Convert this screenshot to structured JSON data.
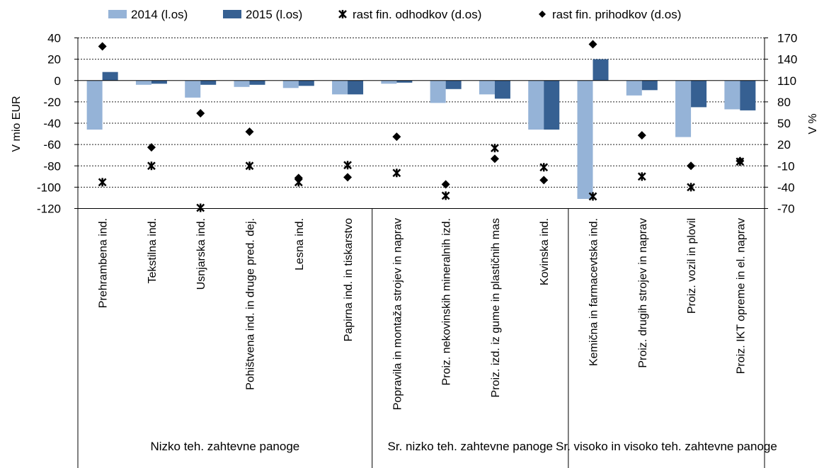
{
  "chart_data": {
    "type": "bar",
    "ylabel": "V mio EUR",
    "y2label": "V %",
    "ylim": [
      -120,
      40
    ],
    "y_ticks": [
      40,
      20,
      0,
      -20,
      -40,
      -60,
      -80,
      -100,
      -120
    ],
    "y2lim": [
      -70,
      170
    ],
    "y2_ticks": [
      170,
      140,
      110,
      80,
      50,
      20,
      -10,
      -40,
      -70
    ],
    "grid": "horizontal dashed",
    "legend_position": "top",
    "categories": [
      "Prehrambena ind.",
      "Tekstilna ind.",
      "Usnjarska ind.",
      "Pohištvena ind. in druge pred. dej.",
      "Lesna ind.",
      "Papirna ind. in tiskarstvo",
      "Popravila in montaža strojev in naprav",
      "Proiz. nekovinskih mineralnih izd.",
      "Proiz. izd. iz gume in plastičnih mas",
      "Kovinska ind.",
      "Kemična in farmacevtska ind.",
      "Proiz. drugih strojev in naprav",
      "Proiz. vozil in plovil",
      "Proiz. IKT opreme in el. naprav"
    ],
    "groups": [
      {
        "label": "Nizko teh. zahtevne panoge",
        "span": [
          0,
          5
        ]
      },
      {
        "label": "Sr. nizko teh. zahtevne panoge",
        "span": [
          6,
          9
        ]
      },
      {
        "label": "Sr. visoko in visoko teh. zahtevne panoge",
        "span": [
          10,
          13
        ]
      }
    ],
    "series": [
      {
        "name": "2014 (l.os)",
        "type": "bar",
        "axis": "left",
        "color": "#95b3d7",
        "values": [
          -46,
          -4,
          -16,
          -6,
          -7,
          -13,
          -3,
          -21,
          -13,
          -46,
          -111,
          -14,
          -53,
          -27
        ]
      },
      {
        "name": "2015 (l.os)",
        "type": "bar",
        "axis": "left",
        "color": "#366092",
        "values": [
          8,
          -3,
          -4,
          -4,
          -5,
          -13,
          -2,
          -8,
          -17,
          -46,
          20,
          -9,
          -25,
          -28
        ]
      },
      {
        "name": "rast fin. odhodkov (d.os)",
        "type": "scatter",
        "marker": "star",
        "axis": "right",
        "color": "#000000",
        "values": [
          -33,
          -10,
          -69,
          -10,
          -33,
          -9,
          -20,
          -52,
          15,
          -12,
          -53,
          -25,
          -40,
          -4
        ]
      },
      {
        "name": "rast fin. prihodkov (d.os)",
        "type": "scatter",
        "marker": "diamond",
        "axis": "right",
        "color": "#000000",
        "values": [
          158,
          16,
          64,
          38,
          -27,
          -26,
          31,
          -36,
          0,
          -30,
          161,
          33,
          -10,
          -3
        ]
      }
    ]
  }
}
